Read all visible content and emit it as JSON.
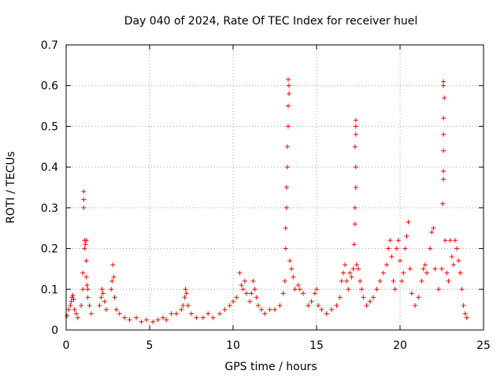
{
  "chart_data": {
    "type": "scatter",
    "title": "Day 040 of 2024, Rate Of TEC Index for receiver huel",
    "xlabel": "GPS time / hours",
    "ylabel": "ROTI / TECUs",
    "xlim": [
      0,
      25
    ],
    "ylim": [
      0,
      0.7
    ],
    "xticks": [
      "0",
      "5",
      "10",
      "15",
      "20",
      "25"
    ],
    "yticks": [
      "0",
      "0.1",
      "0.2",
      "0.3",
      "0.4",
      "0.5",
      "0.6",
      "0.7"
    ],
    "grid": true,
    "marker": "+",
    "color": "#ff0000",
    "series": [
      {
        "name": "ROTI",
        "points": [
          [
            0.05,
            0.035
          ],
          [
            0.15,
            0.05
          ],
          [
            0.25,
            0.06
          ],
          [
            0.3,
            0.07
          ],
          [
            0.35,
            0.08
          ],
          [
            0.4,
            0.085
          ],
          [
            0.45,
            0.075
          ],
          [
            0.5,
            0.05
          ],
          [
            0.6,
            0.04
          ],
          [
            0.7,
            0.03
          ],
          [
            0.9,
            0.06
          ],
          [
            1.0,
            0.1
          ],
          [
            1.0,
            0.14
          ],
          [
            1.05,
            0.3
          ],
          [
            1.05,
            0.32
          ],
          [
            1.05,
            0.34
          ],
          [
            1.1,
            0.2
          ],
          [
            1.1,
            0.22
          ],
          [
            1.15,
            0.21
          ],
          [
            1.2,
            0.22
          ],
          [
            1.2,
            0.17
          ],
          [
            1.2,
            0.13
          ],
          [
            1.25,
            0.11
          ],
          [
            1.3,
            0.1
          ],
          [
            1.3,
            0.08
          ],
          [
            1.4,
            0.06
          ],
          [
            1.5,
            0.04
          ],
          [
            2.0,
            0.06
          ],
          [
            2.1,
            0.08
          ],
          [
            2.15,
            0.1
          ],
          [
            2.2,
            0.09
          ],
          [
            2.3,
            0.07
          ],
          [
            2.4,
            0.05
          ],
          [
            2.7,
            0.1
          ],
          [
            2.75,
            0.12
          ],
          [
            2.8,
            0.16
          ],
          [
            2.85,
            0.13
          ],
          [
            2.9,
            0.08
          ],
          [
            3.0,
            0.05
          ],
          [
            3.2,
            0.04
          ],
          [
            3.5,
            0.03
          ],
          [
            3.8,
            0.025
          ],
          [
            4.2,
            0.03
          ],
          [
            4.5,
            0.02
          ],
          [
            4.8,
            0.025
          ],
          [
            5.2,
            0.02
          ],
          [
            5.5,
            0.025
          ],
          [
            5.8,
            0.03
          ],
          [
            6.0,
            0.025
          ],
          [
            6.3,
            0.04
          ],
          [
            6.6,
            0.04
          ],
          [
            6.9,
            0.05
          ],
          [
            7.0,
            0.06
          ],
          [
            7.1,
            0.08
          ],
          [
            7.15,
            0.1
          ],
          [
            7.2,
            0.09
          ],
          [
            7.3,
            0.06
          ],
          [
            7.5,
            0.04
          ],
          [
            7.8,
            0.03
          ],
          [
            8.2,
            0.03
          ],
          [
            8.5,
            0.04
          ],
          [
            8.8,
            0.03
          ],
          [
            9.2,
            0.04
          ],
          [
            9.5,
            0.05
          ],
          [
            9.8,
            0.06
          ],
          [
            10.0,
            0.07
          ],
          [
            10.2,
            0.08
          ],
          [
            10.4,
            0.14
          ],
          [
            10.5,
            0.11
          ],
          [
            10.6,
            0.1
          ],
          [
            10.7,
            0.12
          ],
          [
            10.8,
            0.09
          ],
          [
            11.0,
            0.07
          ],
          [
            11.1,
            0.09
          ],
          [
            11.2,
            0.12
          ],
          [
            11.3,
            0.1
          ],
          [
            11.4,
            0.08
          ],
          [
            11.5,
            0.06
          ],
          [
            11.7,
            0.05
          ],
          [
            11.9,
            0.04
          ],
          [
            12.2,
            0.05
          ],
          [
            12.5,
            0.05
          ],
          [
            12.8,
            0.06
          ],
          [
            13.0,
            0.09
          ],
          [
            13.1,
            0.12
          ],
          [
            13.15,
            0.2
          ],
          [
            13.15,
            0.25
          ],
          [
            13.2,
            0.3
          ],
          [
            13.2,
            0.35
          ],
          [
            13.25,
            0.4
          ],
          [
            13.25,
            0.45
          ],
          [
            13.3,
            0.5
          ],
          [
            13.3,
            0.55
          ],
          [
            13.35,
            0.58
          ],
          [
            13.35,
            0.6
          ],
          [
            13.3,
            0.615
          ],
          [
            13.4,
            0.17
          ],
          [
            13.5,
            0.15
          ],
          [
            13.6,
            0.13
          ],
          [
            13.7,
            0.1
          ],
          [
            13.9,
            0.11
          ],
          [
            14.0,
            0.1
          ],
          [
            14.2,
            0.09
          ],
          [
            14.5,
            0.06
          ],
          [
            14.7,
            0.07
          ],
          [
            14.9,
            0.09
          ],
          [
            15.0,
            0.1
          ],
          [
            15.1,
            0.06
          ],
          [
            15.3,
            0.05
          ],
          [
            15.6,
            0.04
          ],
          [
            15.9,
            0.05
          ],
          [
            16.2,
            0.06
          ],
          [
            16.4,
            0.08
          ],
          [
            16.5,
            0.12
          ],
          [
            16.6,
            0.14
          ],
          [
            16.7,
            0.16
          ],
          [
            16.8,
            0.12
          ],
          [
            16.9,
            0.1
          ],
          [
            17.0,
            0.14
          ],
          [
            17.1,
            0.13
          ],
          [
            17.2,
            0.15
          ],
          [
            17.25,
            0.21
          ],
          [
            17.3,
            0.26
          ],
          [
            17.3,
            0.3
          ],
          [
            17.35,
            0.35
          ],
          [
            17.35,
            0.4
          ],
          [
            17.3,
            0.45
          ],
          [
            17.35,
            0.48
          ],
          [
            17.35,
            0.5
          ],
          [
            17.35,
            0.515
          ],
          [
            17.4,
            0.16
          ],
          [
            17.5,
            0.15
          ],
          [
            17.6,
            0.12
          ],
          [
            17.7,
            0.1
          ],
          [
            17.8,
            0.08
          ],
          [
            18.0,
            0.06
          ],
          [
            18.2,
            0.07
          ],
          [
            18.4,
            0.08
          ],
          [
            18.6,
            0.1
          ],
          [
            18.8,
            0.12
          ],
          [
            19.0,
            0.14
          ],
          [
            19.2,
            0.16
          ],
          [
            19.3,
            0.2
          ],
          [
            19.4,
            0.22
          ],
          [
            19.5,
            0.18
          ],
          [
            19.6,
            0.12
          ],
          [
            19.7,
            0.1
          ],
          [
            19.8,
            0.2
          ],
          [
            19.9,
            0.22
          ],
          [
            20.0,
            0.17
          ],
          [
            20.1,
            0.12
          ],
          [
            20.2,
            0.14
          ],
          [
            20.3,
            0.2
          ],
          [
            20.4,
            0.23
          ],
          [
            20.5,
            0.265
          ],
          [
            20.6,
            0.15
          ],
          [
            20.7,
            0.09
          ],
          [
            20.9,
            0.06
          ],
          [
            21.1,
            0.08
          ],
          [
            21.3,
            0.12
          ],
          [
            21.4,
            0.15
          ],
          [
            21.5,
            0.16
          ],
          [
            21.6,
            0.14
          ],
          [
            21.8,
            0.2
          ],
          [
            21.9,
            0.24
          ],
          [
            22.0,
            0.25
          ],
          [
            22.1,
            0.15
          ],
          [
            22.3,
            0.1
          ],
          [
            22.5,
            0.15
          ],
          [
            22.55,
            0.31
          ],
          [
            22.6,
            0.37
          ],
          [
            22.6,
            0.39
          ],
          [
            22.6,
            0.44
          ],
          [
            22.6,
            0.48
          ],
          [
            22.6,
            0.52
          ],
          [
            22.65,
            0.57
          ],
          [
            22.6,
            0.6
          ],
          [
            22.6,
            0.61
          ],
          [
            22.7,
            0.22
          ],
          [
            22.8,
            0.14
          ],
          [
            22.9,
            0.12
          ],
          [
            23.0,
            0.22
          ],
          [
            23.1,
            0.18
          ],
          [
            23.2,
            0.16
          ],
          [
            23.3,
            0.22
          ],
          [
            23.4,
            0.2
          ],
          [
            23.5,
            0.17
          ],
          [
            23.6,
            0.14
          ],
          [
            23.7,
            0.1
          ],
          [
            23.8,
            0.06
          ],
          [
            23.9,
            0.04
          ],
          [
            24.0,
            0.03
          ]
        ]
      }
    ]
  }
}
